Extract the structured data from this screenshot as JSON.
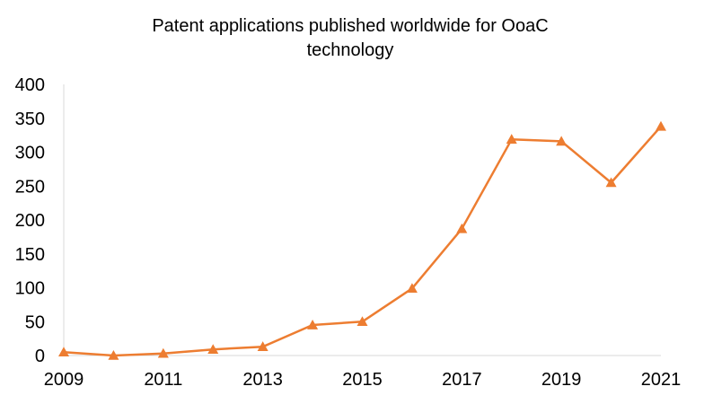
{
  "chart_data": {
    "type": "line",
    "title_lines": [
      "Patent applications published  worldwide  for OoaC",
      "technology"
    ],
    "x": [
      2009,
      2010,
      2011,
      2012,
      2013,
      2014,
      2015,
      2016,
      2017,
      2018,
      2019,
      2020,
      2021
    ],
    "x_tick_labels": [
      "2009",
      "2011",
      "2013",
      "2015",
      "2017",
      "2019",
      "2021"
    ],
    "y_tick_labels": [
      "0",
      "50",
      "100",
      "150",
      "200",
      "250",
      "300",
      "350",
      "400"
    ],
    "series": [
      {
        "values": [
          5,
          0,
          3,
          9,
          13,
          45,
          50,
          99,
          187,
          319,
          316,
          255,
          338
        ],
        "color": "#ED7D31",
        "marker": "triangle"
      }
    ],
    "xlim": [
      2009,
      2021
    ],
    "ylim": [
      0,
      400
    ],
    "xlabel": "",
    "ylabel": "",
    "grid": false,
    "legend": "none"
  }
}
